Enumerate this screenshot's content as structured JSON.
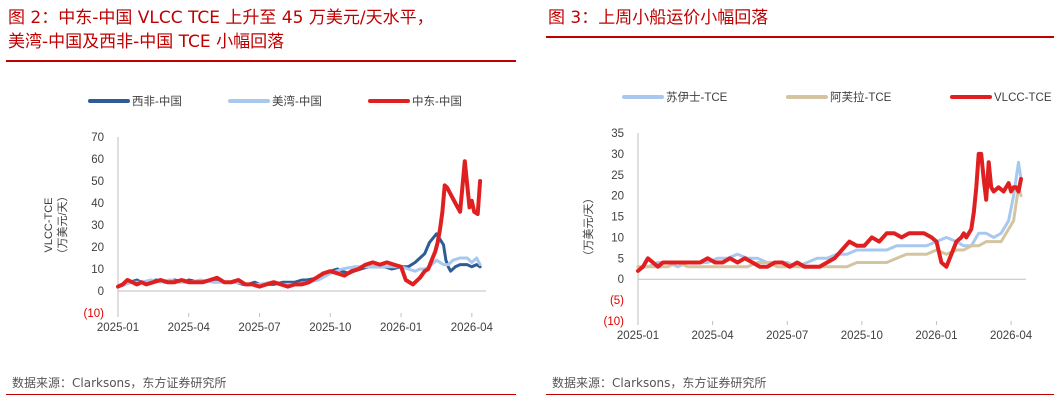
{
  "colors": {
    "title": "#c00000",
    "west_africa": "#2e5c94",
    "us_gulf": "#a8c8f0",
    "middle_east": "#e02020",
    "suez": "#a8c8f0",
    "aframax": "#d4c5a0",
    "vlcc": "#e02020",
    "negative_tick": "#e00000"
  },
  "left": {
    "title_line1": "图 2：中东-中国 VLCC TCE 上升至 45 万美元/天水平，",
    "title_line2": "美湾-中国及西非-中国 TCE 小幅回落",
    "source": "数据来源：Clarksons，东方证券研究所"
  },
  "right": {
    "title_line1": "图 3：上周小船运价小幅回落",
    "source": "数据来源：Clarksons，东方证券研究所"
  },
  "chart_data": [
    {
      "type": "line",
      "ylabel": "VLCC-TCE",
      "ylabel_unit": "（万美元/天）",
      "ylim": [
        -10,
        70
      ],
      "y_ticks": [
        "70",
        "60",
        "50",
        "40",
        "30",
        "20",
        "10",
        "0",
        "(10)"
      ],
      "x_ticks": [
        "2025-01",
        "2025-04",
        "2025-07",
        "2025-10",
        "2026-01",
        "2026-04"
      ],
      "x_tick_months": [
        0,
        3,
        6,
        9,
        12,
        15
      ],
      "legend_position": "top",
      "series": [
        {
          "name": "西非-中国",
          "color": "#2e5c94",
          "width": 3,
          "x": [
            0,
            0.3,
            0.5,
            0.8,
            1.0,
            1.3,
            1.6,
            2.0,
            2.4,
            2.8,
            3.0,
            3.5,
            4.0,
            4.5,
            5.0,
            5.3,
            5.5,
            5.8,
            6.0,
            6.3,
            6.6,
            7.0,
            7.5,
            7.8,
            8.0,
            8.5,
            9.0,
            9.3,
            9.5,
            9.8,
            10.0,
            10.3,
            10.6,
            11.0,
            11.3,
            11.6,
            12.0,
            12.3,
            12.6,
            13.0,
            13.2,
            13.5,
            13.8,
            13.9,
            14.0,
            14.1,
            14.3,
            14.5,
            14.8,
            15.0,
            15.2,
            15.35
          ],
          "y": [
            2,
            3,
            4,
            5,
            4,
            4,
            5,
            4,
            5,
            4,
            5,
            4,
            5,
            4,
            4,
            3,
            3,
            4,
            3,
            3,
            3,
            4,
            4,
            5,
            5,
            6,
            9,
            10,
            9,
            8,
            9,
            10,
            11,
            11,
            11,
            10,
            11,
            11,
            13,
            17,
            22,
            26,
            21,
            14,
            11,
            9,
            11,
            12,
            12,
            11,
            12,
            11
          ]
        },
        {
          "name": "美湾-中国",
          "color": "#a8c8f0",
          "width": 3,
          "x": [
            0,
            0.3,
            0.6,
            1.0,
            1.4,
            1.8,
            2.2,
            2.6,
            3.0,
            3.5,
            4.0,
            4.5,
            5.0,
            5.5,
            6.0,
            6.5,
            7.0,
            7.5,
            8.0,
            8.5,
            9.0,
            9.5,
            10.0,
            10.5,
            11.0,
            11.5,
            12.0,
            12.3,
            12.6,
            12.8,
            13.0,
            13.2,
            13.5,
            13.8,
            14.0,
            14.2,
            14.5,
            14.8,
            15.0,
            15.2,
            15.35
          ],
          "y": [
            2,
            3,
            4,
            4,
            5,
            4,
            5,
            4,
            4,
            5,
            4,
            4,
            4,
            3,
            3,
            4,
            3,
            3,
            4,
            5,
            8,
            10,
            11,
            11,
            11,
            11,
            11,
            10,
            9,
            10,
            10,
            11,
            14,
            12,
            12,
            14,
            15,
            15,
            13,
            15,
            12
          ]
        },
        {
          "name": "中东-中国",
          "color": "#e02020",
          "width": 4,
          "x": [
            0,
            0.2,
            0.4,
            0.6,
            0.8,
            1.0,
            1.2,
            1.5,
            1.8,
            2.1,
            2.4,
            2.7,
            3.0,
            3.3,
            3.6,
            3.9,
            4.2,
            4.5,
            4.8,
            5.1,
            5.4,
            5.7,
            6.0,
            6.3,
            6.6,
            6.9,
            7.2,
            7.5,
            7.8,
            8.1,
            8.4,
            8.7,
            9.0,
            9.3,
            9.6,
            9.9,
            10.2,
            10.5,
            10.8,
            11.1,
            11.4,
            11.7,
            12.0,
            12.2,
            12.5,
            12.8,
            13.0,
            13.15,
            13.3,
            13.45,
            13.55,
            13.65,
            13.75,
            13.85,
            13.95,
            14.1,
            14.3,
            14.5,
            14.7,
            14.9,
            15.0,
            15.1,
            15.25,
            15.35
          ],
          "y": [
            2,
            3,
            5,
            4,
            3,
            4,
            3,
            4,
            5,
            4,
            4,
            5,
            4,
            4,
            4,
            5,
            6,
            4,
            4,
            5,
            3,
            3,
            2,
            3,
            4,
            3,
            2,
            3,
            3,
            4,
            6,
            8,
            9,
            8,
            7,
            9,
            10,
            12,
            13,
            12,
            13,
            12,
            11,
            5,
            3,
            6,
            9,
            10,
            14,
            18,
            22,
            28,
            36,
            48,
            47,
            44,
            40,
            36,
            59,
            38,
            41,
            36,
            35,
            50
          ]
        }
      ]
    },
    {
      "type": "line",
      "ylabel": "（万美元/天）",
      "ylim": [
        -10,
        35
      ],
      "y_ticks": [
        "35",
        "30",
        "25",
        "20",
        "15",
        "10",
        "5",
        "0",
        "(5)",
        "(10)"
      ],
      "x_ticks": [
        "2025-01",
        "2025-04",
        "2025-07",
        "2025-10",
        "2026-01",
        "2026-04"
      ],
      "x_tick_months": [
        0,
        3,
        6,
        9,
        12,
        15
      ],
      "legend_position": "top",
      "series": [
        {
          "name": "苏伊士-TCE",
          "color": "#a8c8f0",
          "width": 3,
          "x": [
            0,
            0.4,
            0.8,
            1.2,
            1.6,
            2.0,
            2.4,
            2.8,
            3.2,
            3.6,
            4.0,
            4.4,
            4.8,
            5.2,
            5.6,
            6.0,
            6.4,
            6.8,
            7.2,
            7.6,
            8.0,
            8.4,
            8.8,
            9.2,
            9.6,
            10.0,
            10.4,
            10.8,
            11.2,
            11.6,
            12.0,
            12.4,
            12.8,
            13.1,
            13.4,
            13.7,
            14.0,
            14.3,
            14.6,
            14.9,
            15.1,
            15.3,
            15.4
          ],
          "y": [
            3,
            3,
            4,
            4,
            3,
            4,
            4,
            4,
            5,
            5,
            6,
            5,
            5,
            4,
            4,
            4,
            3,
            4,
            5,
            5,
            6,
            6,
            7,
            7,
            7,
            7,
            8,
            8,
            8,
            8,
            9,
            10,
            9,
            8,
            8,
            11,
            11,
            10,
            11,
            14,
            20,
            28,
            24
          ]
        },
        {
          "name": "阿芙拉-TCE",
          "color": "#d4c5a0",
          "width": 3,
          "x": [
            0,
            0.4,
            0.8,
            1.2,
            1.6,
            2.0,
            2.4,
            2.8,
            3.2,
            3.6,
            4.0,
            4.4,
            4.8,
            5.2,
            5.6,
            6.0,
            6.4,
            6.8,
            7.2,
            7.6,
            8.0,
            8.4,
            8.8,
            9.2,
            9.6,
            10.0,
            10.4,
            10.8,
            11.2,
            11.6,
            12.0,
            12.4,
            12.8,
            13.1,
            13.4,
            13.7,
            14.0,
            14.3,
            14.6,
            14.9,
            15.1,
            15.3,
            15.4
          ],
          "y": [
            3,
            3,
            3,
            3,
            4,
            3,
            3,
            3,
            3,
            3,
            3,
            3,
            4,
            4,
            3,
            3,
            3,
            3,
            3,
            3,
            3,
            3,
            4,
            4,
            4,
            4,
            5,
            6,
            6,
            6,
            7,
            6,
            7,
            7,
            8,
            8,
            9,
            9,
            9,
            12,
            14,
            22,
            20
          ]
        },
        {
          "name": "VLCC-TCE",
          "color": "#e02020",
          "width": 4,
          "x": [
            0,
            0.2,
            0.4,
            0.6,
            0.8,
            1.0,
            1.3,
            1.6,
            1.9,
            2.2,
            2.5,
            2.8,
            3.1,
            3.4,
            3.7,
            4.0,
            4.3,
            4.6,
            4.9,
            5.2,
            5.5,
            5.8,
            6.1,
            6.4,
            6.7,
            7.0,
            7.3,
            7.6,
            7.9,
            8.2,
            8.5,
            8.8,
            9.1,
            9.4,
            9.7,
            10.0,
            10.3,
            10.6,
            10.9,
            11.2,
            11.5,
            11.8,
            12.0,
            12.2,
            12.4,
            12.6,
            12.8,
            13.0,
            13.1,
            13.2,
            13.3,
            13.4,
            13.5,
            13.6,
            13.7,
            13.8,
            13.9,
            14.0,
            14.1,
            14.2,
            14.3,
            14.5,
            14.7,
            14.9,
            15.0,
            15.1,
            15.2,
            15.3,
            15.4
          ],
          "y": [
            2,
            3,
            5,
            4,
            3,
            4,
            4,
            4,
            4,
            4,
            4,
            5,
            4,
            4,
            5,
            4,
            5,
            4,
            3,
            3,
            4,
            4,
            3,
            4,
            3,
            3,
            3,
            4,
            5,
            7,
            9,
            8,
            8,
            10,
            9,
            11,
            11,
            10,
            11,
            11,
            11,
            10,
            9,
            4,
            3,
            6,
            9,
            10,
            11,
            10,
            11,
            12,
            16,
            22,
            30,
            30,
            24,
            19,
            28,
            22,
            21,
            22,
            21,
            23,
            21,
            22,
            22,
            21,
            24
          ]
        }
      ]
    }
  ]
}
